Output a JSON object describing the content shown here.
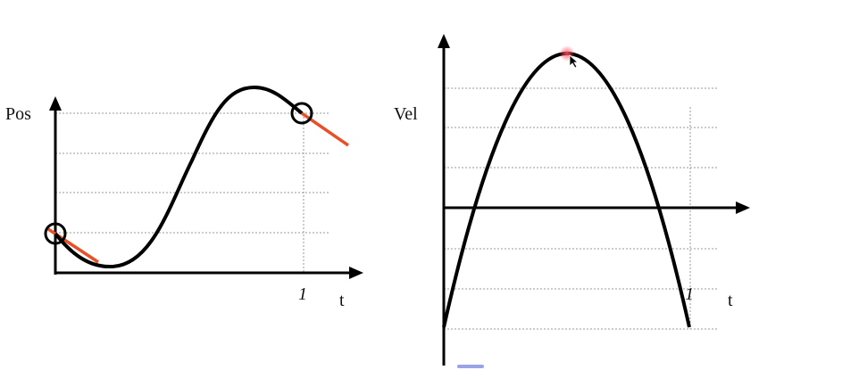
{
  "left": {
    "y_label": "Pos",
    "x_label": "t",
    "x_mark": "1"
  },
  "right": {
    "y_label": "Vel",
    "x_label": "t",
    "x_mark": "1"
  }
}
